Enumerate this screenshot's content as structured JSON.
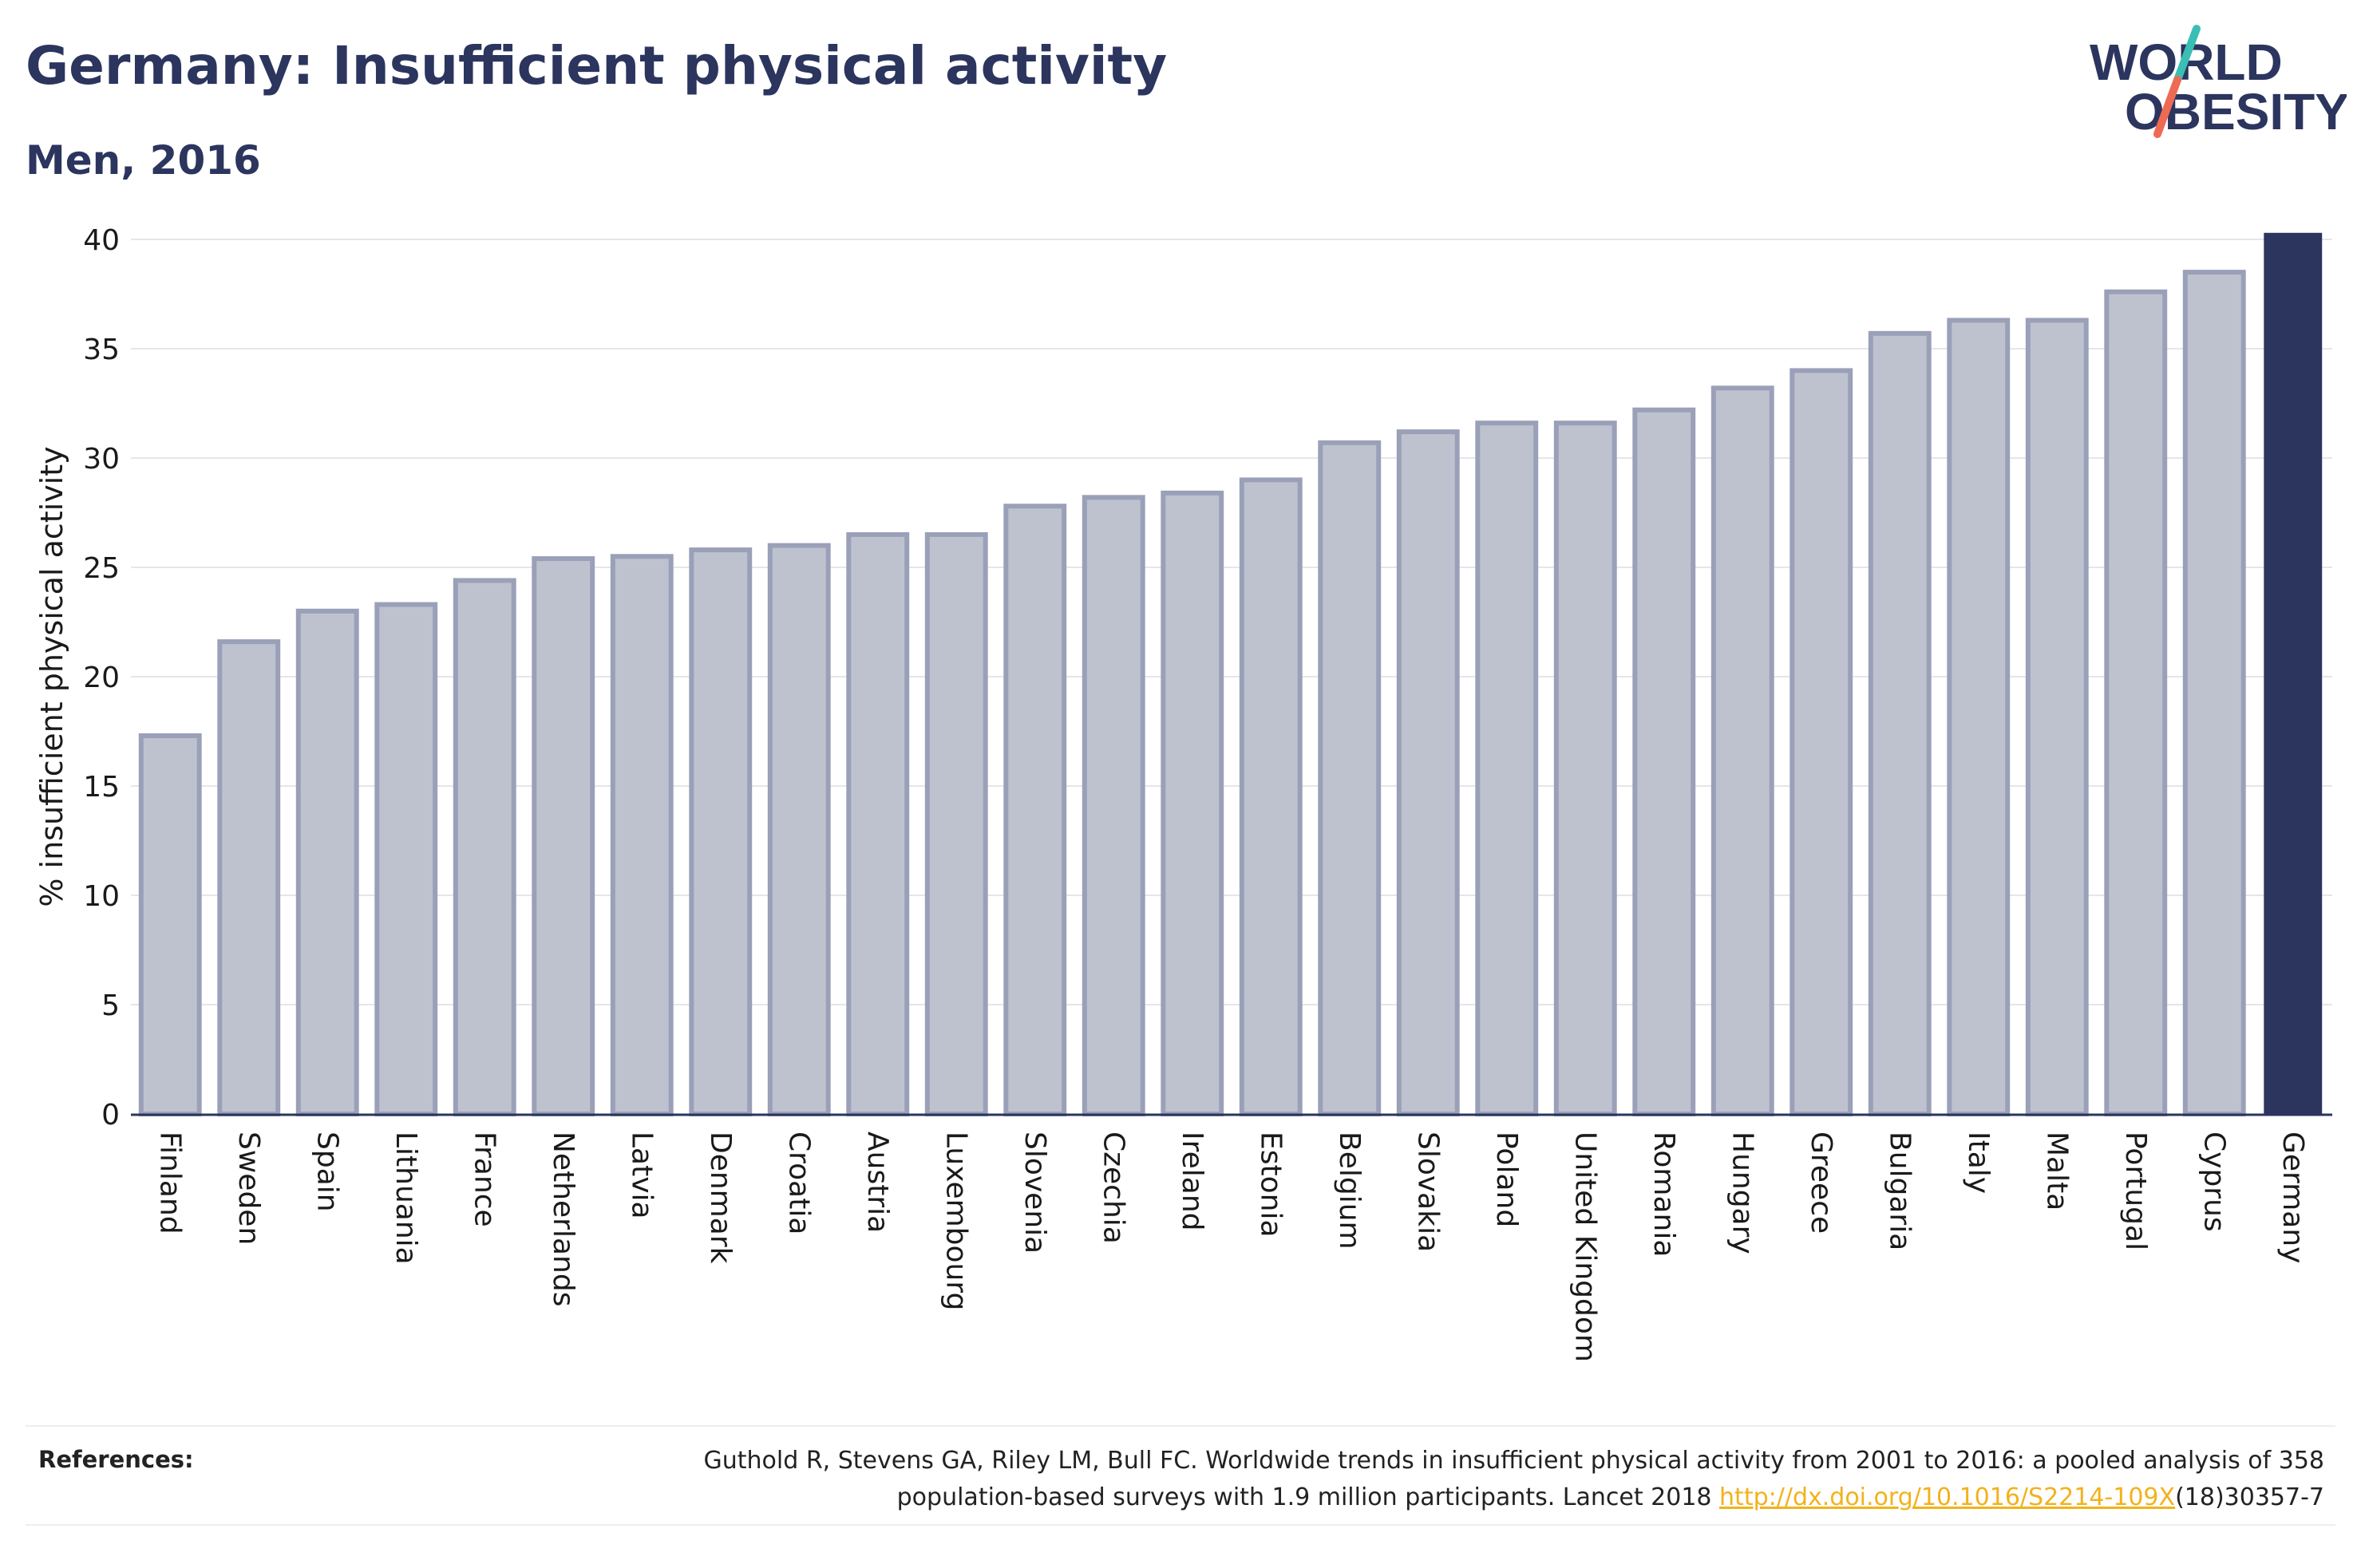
{
  "header": {
    "title": "Germany: Insufficient physical activity",
    "subtitle": "Men, 2016"
  },
  "logo": {
    "line1": "WORLD",
    "line2": "OBESITY",
    "colors": {
      "text": "#2b355e",
      "slash_top": "#3bbfb5",
      "slash_bottom": "#ee6a55"
    }
  },
  "colors": {
    "highlight": "#2b355e",
    "bar_fill": "#bec2cf",
    "bar_stroke": "#9aa0b8",
    "grid": "#e6e6ea",
    "axis": "#2b355e",
    "link": "#f2b21c"
  },
  "chart_data": {
    "type": "bar",
    "ylabel": "% insufficient physical activity",
    "xlabel": "",
    "ylim": [
      0,
      40
    ],
    "yticks": [
      0,
      5,
      10,
      15,
      20,
      25,
      30,
      35,
      40
    ],
    "grid": true,
    "highlight": "Germany",
    "categories": [
      "Finland",
      "Sweden",
      "Spain",
      "Lithuania",
      "France",
      "Netherlands",
      "Latvia",
      "Denmark",
      "Croatia",
      "Austria",
      "Luxembourg",
      "Slovenia",
      "Czechia",
      "Ireland",
      "Estonia",
      "Belgium",
      "Slovakia",
      "Poland",
      "United Kingdom",
      "Romania",
      "Hungary",
      "Greece",
      "Bulgaria",
      "Italy",
      "Malta",
      "Portugal",
      "Cyprus",
      "Germany"
    ],
    "values": [
      17.3,
      21.6,
      23.0,
      23.3,
      24.4,
      25.4,
      25.5,
      25.8,
      26.0,
      26.5,
      26.5,
      27.8,
      28.2,
      28.4,
      29.0,
      30.7,
      31.2,
      31.6,
      31.6,
      32.2,
      33.2,
      34.0,
      35.7,
      36.3,
      36.3,
      37.6,
      38.5,
      40.3
    ]
  },
  "references": {
    "label": "References:",
    "text_line1": "Guthold R, Stevens GA, Riley LM, Bull FC. Worldwide trends in insufficient physical activity from 2001 to 2016: a pooled analysis of 358",
    "text_line2_before": "population-based surveys with 1.9 million participants. Lancet 2018 ",
    "link": "http://dx.doi.org/10.1016/S2214-109X",
    "text_after_link": "(18)30357-7"
  }
}
